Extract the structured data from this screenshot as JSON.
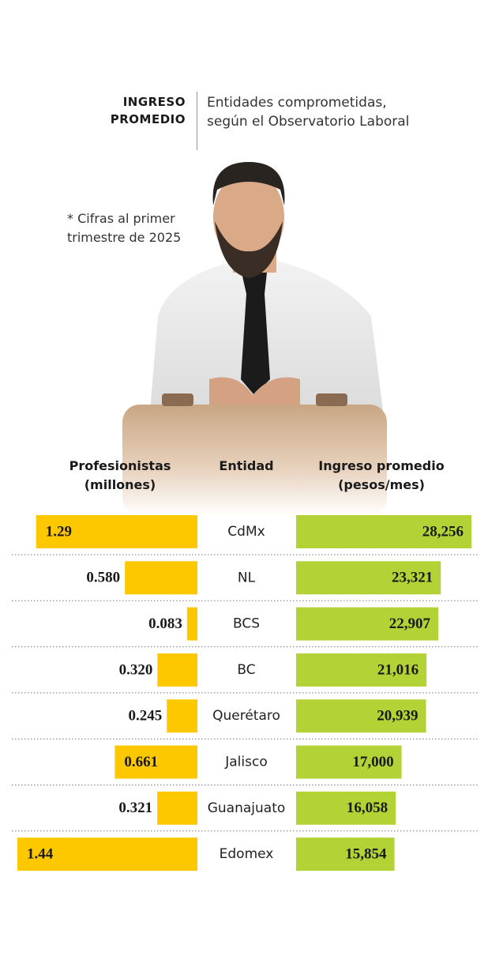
{
  "header": {
    "title": "INGRESO PROMEDIO",
    "subtitle": "Entidades comprometidas, según el Observatorio Laboral",
    "note": "* Cifras al primer trimestre de 2025"
  },
  "chart_data": {
    "type": "bar",
    "category_label": "Entidad",
    "categories": [
      "CdMx",
      "NL",
      "BCS",
      "BC",
      "Querétaro",
      "Jalisco",
      "Guanajuato",
      "Edomex"
    ],
    "series": [
      {
        "name": "Profesionistas (millones)",
        "color": "#fdc800",
        "values": [
          1.29,
          0.58,
          0.083,
          0.32,
          0.245,
          0.661,
          0.321,
          1.44
        ],
        "value_labels": [
          "1.29",
          "0.580",
          "0.083",
          "0.320",
          "0.245",
          "0.661",
          "0.321",
          "1.44"
        ]
      },
      {
        "name": "Ingreso promedio (pesos/mes)",
        "color": "#b2d235",
        "values": [
          28256,
          23321,
          22907,
          21016,
          20939,
          17000,
          16058,
          15854
        ],
        "value_labels": [
          "28,256",
          "23,321",
          "22,907",
          "21,016",
          "20,939",
          "17,000",
          "16,058",
          "15,854"
        ]
      }
    ]
  }
}
